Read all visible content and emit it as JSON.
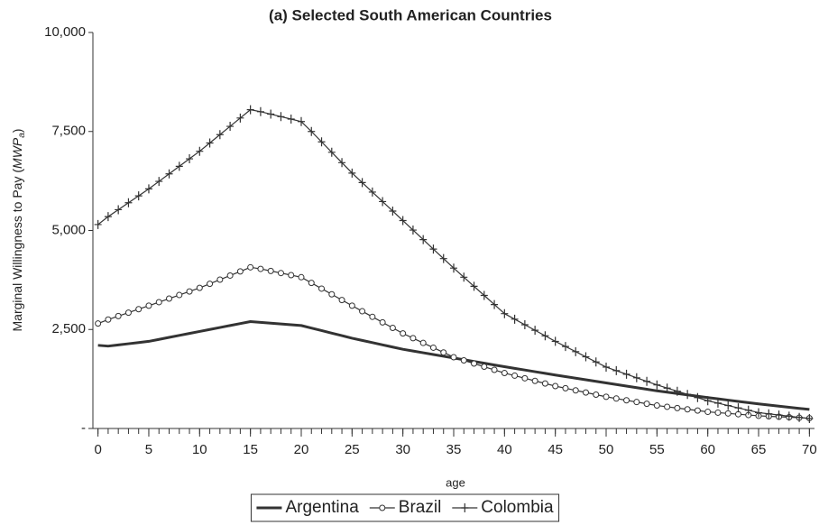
{
  "chart_data": {
    "type": "line",
    "title": "(a) Selected South American Countries",
    "xlabel": "age",
    "ylabel": {
      "text": "Marginal Willingness to Pay (",
      "var": "MWP",
      "sub": "a",
      "close": ")"
    },
    "x": [
      0,
      1,
      2,
      3,
      4,
      5,
      6,
      7,
      8,
      9,
      10,
      11,
      12,
      13,
      14,
      15,
      16,
      17,
      18,
      19,
      20,
      21,
      22,
      23,
      24,
      25,
      26,
      27,
      28,
      29,
      30,
      31,
      32,
      33,
      34,
      35,
      36,
      37,
      38,
      39,
      40,
      41,
      42,
      43,
      44,
      45,
      46,
      47,
      48,
      49,
      50,
      51,
      52,
      53,
      54,
      55,
      56,
      57,
      58,
      59,
      60,
      61,
      62,
      63,
      64,
      65,
      66,
      67,
      68,
      69,
      70
    ],
    "xlim": [
      -0.5,
      70.5
    ],
    "xticks": [
      0,
      5,
      10,
      15,
      20,
      25,
      30,
      35,
      40,
      45,
      50,
      55,
      60,
      65,
      70
    ],
    "ylim": [
      0,
      10000
    ],
    "yticks": [
      {
        "value": 0,
        "label": "-"
      },
      {
        "value": 2500,
        "label": "2,500"
      },
      {
        "value": 5000,
        "label": "5,000"
      },
      {
        "value": 7500,
        "label": "7,500"
      },
      {
        "value": 10000,
        "label": "10,000"
      }
    ],
    "legend": "bottom",
    "series": [
      {
        "name": "Argentina",
        "color": "#333333",
        "marker": "none",
        "width": 3,
        "values": [
          2100,
          2080,
          2110,
          2140,
          2170,
          2200,
          2250,
          2300,
          2350,
          2400,
          2450,
          2500,
          2550,
          2600,
          2650,
          2700,
          2680,
          2660,
          2640,
          2620,
          2600,
          2536,
          2472,
          2408,
          2344,
          2280,
          2224,
          2168,
          2112,
          2056,
          2000,
          1956,
          1912,
          1868,
          1824,
          1780,
          1736,
          1692,
          1648,
          1604,
          1560,
          1518,
          1476,
          1434,
          1392,
          1350,
          1310,
          1270,
          1230,
          1190,
          1150,
          1110,
          1070,
          1030,
          990,
          950,
          916,
          882,
          848,
          814,
          780,
          748,
          716,
          684,
          652,
          620,
          592,
          564,
          536,
          508,
          480
        ]
      },
      {
        "name": "Brazil",
        "color": "#333333",
        "marker": "circle",
        "width": 1.2,
        "values": [
          2650,
          2750,
          2838,
          2925,
          3013,
          3100,
          3190,
          3280,
          3370,
          3460,
          3550,
          3654,
          3758,
          3862,
          3966,
          4070,
          4030,
          3978,
          3925,
          3873,
          3820,
          3676,
          3532,
          3388,
          3244,
          3100,
          2960,
          2820,
          2680,
          2540,
          2400,
          2280,
          2160,
          2040,
          1920,
          1800,
          1720,
          1640,
          1560,
          1480,
          1400,
          1334,
          1268,
          1202,
          1136,
          1070,
          1016,
          962,
          908,
          854,
          800,
          756,
          712,
          668,
          624,
          580,
          548,
          516,
          484,
          452,
          420,
          400,
          380,
          360,
          340,
          320,
          308,
          296,
          284,
          272,
          260
        ]
      },
      {
        "name": "Colombia",
        "color": "#333333",
        "marker": "plus",
        "width": 1.2,
        "values": [
          5150,
          5350,
          5525,
          5700,
          5875,
          6050,
          6240,
          6430,
          6620,
          6810,
          7000,
          7210,
          7420,
          7630,
          7840,
          8050,
          8000,
          7938,
          7875,
          7813,
          7750,
          7500,
          7238,
          6975,
          6713,
          6450,
          6210,
          5970,
          5730,
          5490,
          5250,
          5010,
          4770,
          4530,
          4290,
          4050,
          3820,
          3590,
          3360,
          3130,
          2900,
          2760,
          2620,
          2480,
          2340,
          2200,
          2070,
          1940,
          1810,
          1680,
          1550,
          1460,
          1370,
          1280,
          1190,
          1100,
          1020,
          940,
          860,
          780,
          700,
          640,
          580,
          520,
          460,
          400,
          370,
          340,
          310,
          280,
          250
        ]
      }
    ]
  }
}
